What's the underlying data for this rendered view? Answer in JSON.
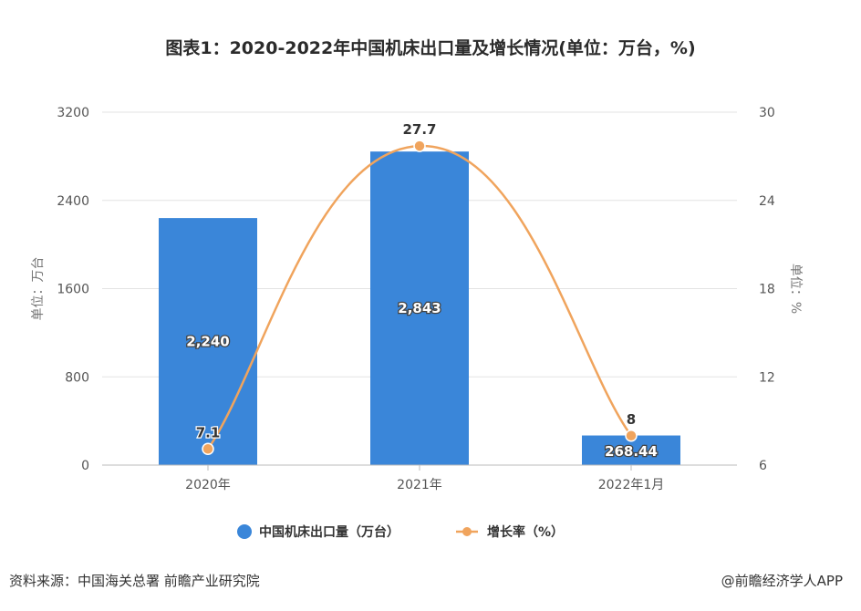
{
  "title": "图表1：2020-2022年中国机床出口量及增长情况(单位：万台，%)",
  "source": "资料来源：中国海关总署 前瞻产业研究院",
  "credit": "@前瞻经济学人APP",
  "watermark": "前瞻产业研究院",
  "colors": {
    "bar": "#3a86d9",
    "line": "#f0a45d",
    "grid": "#e3e3e3"
  },
  "chart_data": {
    "type": "bar",
    "categories": [
      "2020年",
      "2021年",
      "2022年1月"
    ],
    "series": [
      {
        "name": "中国机床出口量（万台）",
        "type": "bar",
        "axis": "left",
        "values": [
          2240,
          2843,
          268.44
        ],
        "labels": [
          "2,240",
          "2,843",
          "268.44"
        ]
      },
      {
        "name": "增长率（%）",
        "type": "line",
        "axis": "right",
        "values": [
          7.1,
          27.7,
          8
        ],
        "labels": [
          "7.1",
          "27.7",
          "8"
        ]
      }
    ],
    "ylabel": "单位：万台",
    "y2label": "单位：%",
    "ylim": [
      0,
      3200
    ],
    "y2lim": [
      6,
      30
    ],
    "yticks": [
      "0",
      "800",
      "1600",
      "2400",
      "3200"
    ],
    "y2ticks": [
      "6",
      "12",
      "18",
      "24",
      "30"
    ],
    "grid": true,
    "legend": "bottom"
  }
}
